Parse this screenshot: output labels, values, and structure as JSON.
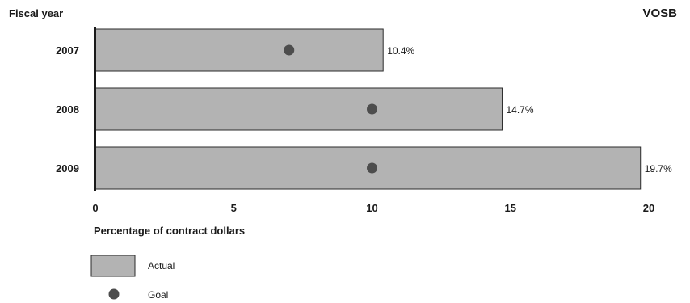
{
  "chart_data": {
    "type": "bar",
    "orientation": "horizontal",
    "title": "VOSB",
    "category_axis_label": "Fiscal year",
    "xlabel": "Percentage of contract dollars",
    "categories": [
      "2007",
      "2008",
      "2009"
    ],
    "series": [
      {
        "name": "Actual",
        "values": [
          10.4,
          14.7,
          19.7
        ],
        "labels": [
          "10.4%",
          "14.7%",
          "19.7%"
        ],
        "color": "#b3b3b3"
      },
      {
        "name": "Goal",
        "values": [
          7,
          10,
          10
        ],
        "color": "#4d4d4d"
      }
    ],
    "xlim": [
      0,
      20
    ],
    "xticks": [
      0,
      5,
      10,
      15,
      20
    ],
    "grid": false,
    "legend_position": "bottom-left"
  }
}
